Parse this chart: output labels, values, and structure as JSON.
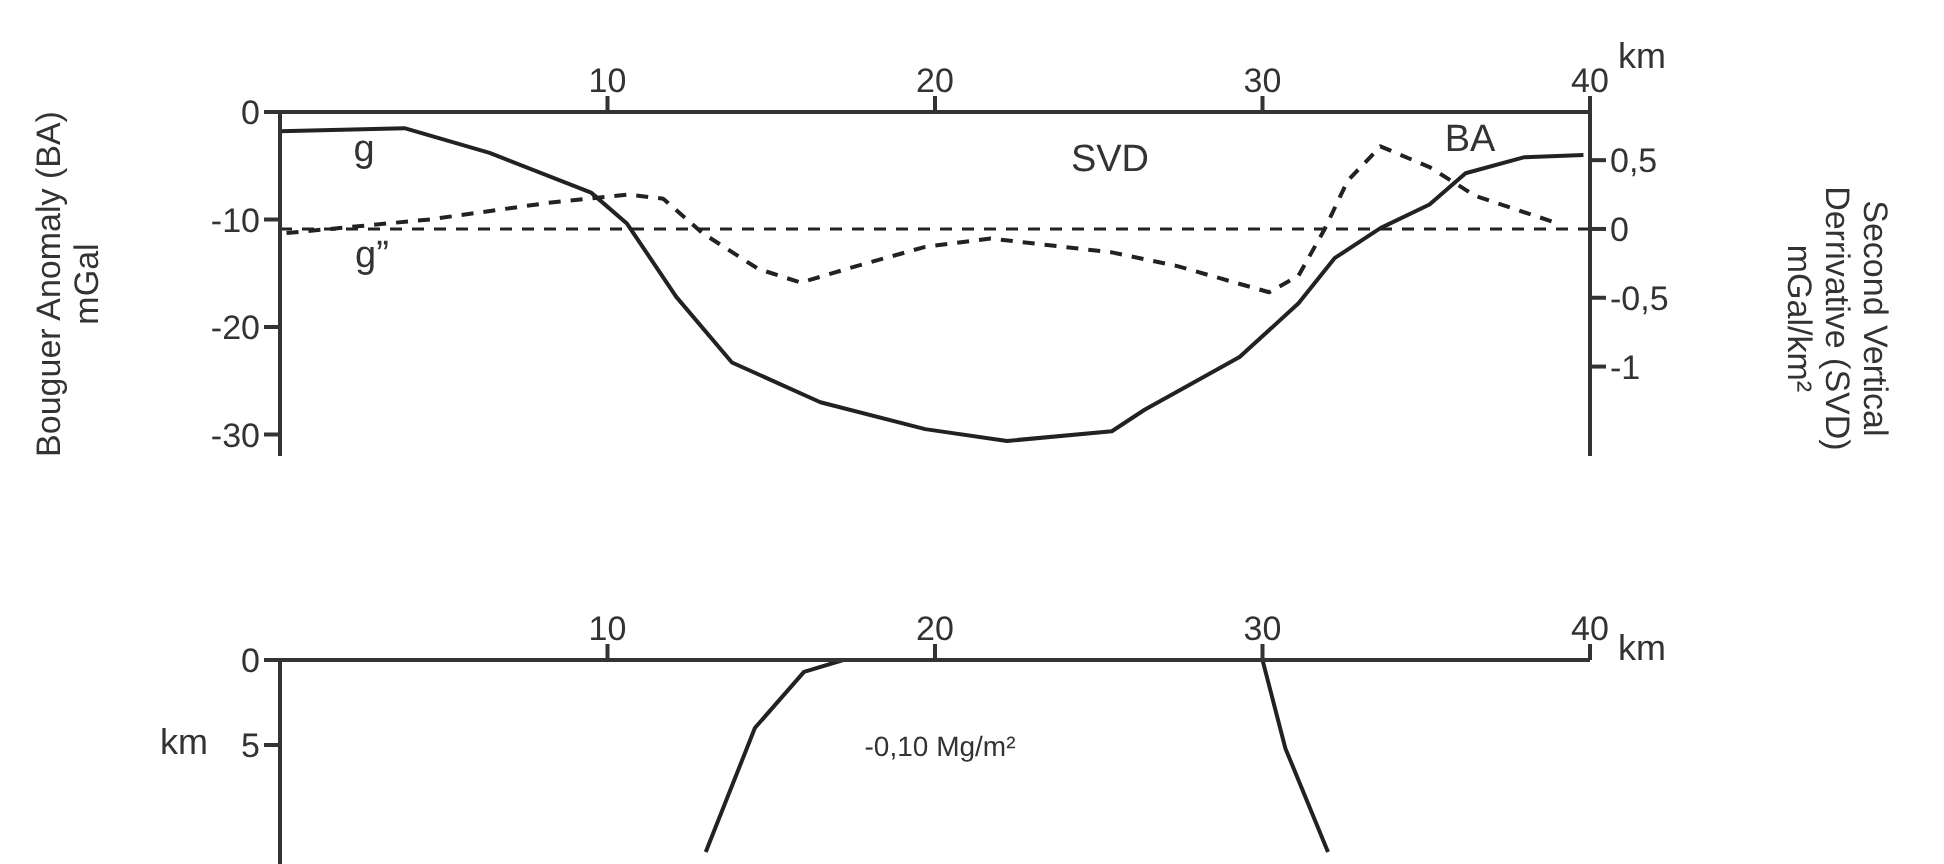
{
  "chart_data": [
    {
      "type": "line",
      "xlabel": "km",
      "ylabel": "Bouguer Anomaly (BA) mGal",
      "y2label": "Second Vertical Derrivative (SVD) mGal/km²",
      "xlim": [
        0,
        40
      ],
      "xticks": [
        10,
        20,
        30,
        40
      ],
      "ylim": [
        -32,
        0
      ],
      "yticks": [
        0,
        -10,
        -20,
        -30
      ],
      "y2lim": [
        -1.65,
        0.85
      ],
      "y2ticks": [
        {
          "value": 0.5,
          "label": "0,5"
        },
        0,
        {
          "value": -0.5,
          "label": "-0,5"
        },
        -1
      ],
      "marker": "none",
      "grid": false,
      "legend": false,
      "series": [
        {
          "color": "#222222",
          "line_style": "solid",
          "x": [
            0,
            3.8,
            6.4,
            9.5,
            10.6,
            12.1,
            13.8,
            16.5,
            19.7,
            22.2,
            25.4,
            26.4,
            29.3,
            31.1,
            32.2,
            33.6,
            35.1,
            36.2,
            38,
            39.8
          ],
          "values": [
            -1.8,
            -1.5,
            -3.8,
            -7.5,
            -10.4,
            -17.2,
            -23.3,
            -27,
            -29.5,
            -30.6,
            -29.7,
            -27.7,
            -22.8,
            -17.8,
            -13.6,
            -10.8,
            -8.6,
            -5.7,
            -4.2,
            -4
          ]
        },
        {
          "color": "#222222",
          "line_style": "dashed",
          "axis": "y2",
          "x": [
            0.2,
            4.6,
            8.2,
            10.6,
            11.7,
            12.9,
            14.6,
            15.9,
            17.6,
            19.7,
            21.7,
            25.4,
            27.4,
            30.2,
            31.1,
            31.9,
            32.6,
            33.6,
            35.1,
            36.5,
            38.9
          ],
          "values": [
            -0.03,
            0.07,
            0.19,
            0.25,
            0.22,
            -0.03,
            -0.29,
            -0.39,
            -0.27,
            -0.13,
            -0.07,
            -0.17,
            -0.27,
            -0.46,
            -0.34,
            0,
            0.35,
            0.6,
            0.45,
            0.24,
            0.05
          ]
        }
      ],
      "ref_lines": [
        {
          "axis": "y2",
          "value": 0,
          "line_style": "dashed",
          "color": "#222222"
        }
      ],
      "annotations": [
        "g",
        "g”",
        "SVD",
        "BA"
      ]
    },
    {
      "type": "line",
      "xlabel": "km",
      "ylabel": "km",
      "xlim": [
        0,
        40
      ],
      "xticks": [
        10,
        20,
        30,
        40
      ],
      "ylim": [
        12,
        0
      ],
      "yticks": [
        0,
        5
      ],
      "marker": "none",
      "grid": false,
      "legend": false,
      "series": [
        {
          "color": "#222222",
          "line_style": "solid",
          "x": [
            17.2,
            16.0,
            14.5,
            13.0
          ],
          "values": [
            0,
            0.7,
            4,
            11.3
          ]
        },
        {
          "color": "#222222",
          "line_style": "solid",
          "x": [
            30,
            30.7,
            32.0
          ],
          "values": [
            0,
            5.2,
            11.3
          ]
        }
      ],
      "annotations": [
        "-0,10 Mg/m²"
      ]
    }
  ]
}
